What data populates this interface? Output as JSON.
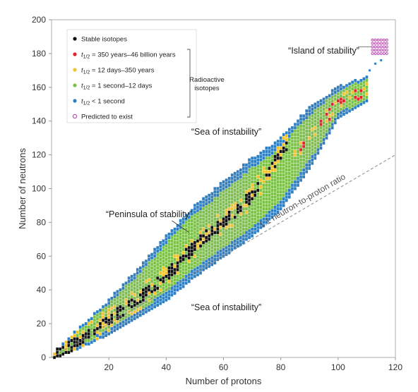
{
  "chart_data": {
    "type": "scatter",
    "xlabel": "Number of protons",
    "ylabel": "Number of neutrons",
    "xlim": [
      0,
      120
    ],
    "ylim": [
      0,
      200
    ],
    "x_ticks": [
      "20",
      "40",
      "60",
      "80",
      "100",
      "120"
    ],
    "y_ticks": [
      "0",
      "20",
      "40",
      "60",
      "80",
      "100",
      "120",
      "140",
      "160",
      "180",
      "200"
    ],
    "origin_label": "0",
    "grid": false,
    "legend_position": "top-left",
    "legend": [
      {
        "key": "stable",
        "label": "Stable isotopes",
        "color": "#111111",
        "marker": "filled"
      },
      {
        "key": "long",
        "label_pre": "t",
        "label_sub": "1/2",
        "label_post": " = 350 years–46 billion years",
        "color": "#e8202a",
        "marker": "filled"
      },
      {
        "key": "medium",
        "label_pre": "t",
        "label_sub": "1/2",
        "label_post": " = 12 days–350 years",
        "color": "#f2c230",
        "marker": "filled"
      },
      {
        "key": "short",
        "label_pre": "t",
        "label_sub": "1/2",
        "label_post": " = 1 second–12 days",
        "color": "#7cc04a",
        "marker": "filled"
      },
      {
        "key": "veryshort",
        "label_pre": "t",
        "label_sub": "1/2",
        "label_post": " < 1 second",
        "color": "#2f7fc1",
        "marker": "filled"
      },
      {
        "key": "predicted",
        "label": "Predicted to exist",
        "color": "#b04aa8",
        "marker": "open"
      }
    ],
    "legend_group_label": [
      "Radioactive",
      "isotopes"
    ],
    "reference_line": {
      "label": "1:1 neutron-to-proton ratio",
      "from": [
        0,
        0
      ],
      "to": [
        120,
        120
      ],
      "style": "dashed"
    },
    "annotations": [
      {
        "text": "“Island of stability”",
        "x": 95,
        "y": 180
      },
      {
        "text": "“Sea of instability”",
        "x": 61,
        "y": 132
      },
      {
        "text": "“Peninsula of stability”",
        "x": 34,
        "y": 83
      },
      {
        "text": "“Sea of instability”",
        "x": 61,
        "y": 28
      }
    ],
    "stable_band": {
      "description": "stable isotopes along the valley of stability",
      "points": [
        [
          0,
          0
        ],
        [
          10,
          10
        ],
        [
          20,
          22
        ],
        [
          30,
          34
        ],
        [
          40,
          48
        ],
        [
          50,
          66
        ],
        [
          60,
          80
        ],
        [
          70,
          96
        ],
        [
          82,
          126
        ]
      ]
    },
    "isotope_band": {
      "z_max": 110,
      "neutron_range_by_z": [
        {
          "z": 1,
          "n_min": 0,
          "n_max": 3
        },
        {
          "z": 10,
          "n_min": 6,
          "n_max": 18
        },
        {
          "z": 20,
          "n_min": 14,
          "n_max": 34
        },
        {
          "z": 30,
          "n_min": 24,
          "n_max": 52
        },
        {
          "z": 40,
          "n_min": 34,
          "n_max": 72
        },
        {
          "z": 50,
          "n_min": 48,
          "n_max": 90
        },
        {
          "z": 60,
          "n_min": 60,
          "n_max": 104
        },
        {
          "z": 70,
          "n_min": 72,
          "n_max": 118
        },
        {
          "z": 80,
          "n_min": 88,
          "n_max": 130
        },
        {
          "z": 90,
          "n_min": 112,
          "n_max": 148
        },
        {
          "z": 100,
          "n_min": 142,
          "n_max": 160
        },
        {
          "z": 110,
          "n_min": 152,
          "n_max": 166
        }
      ]
    },
    "island_points": {
      "z_range": [
        112,
        117
      ],
      "n_range": [
        180,
        188
      ]
    }
  }
}
